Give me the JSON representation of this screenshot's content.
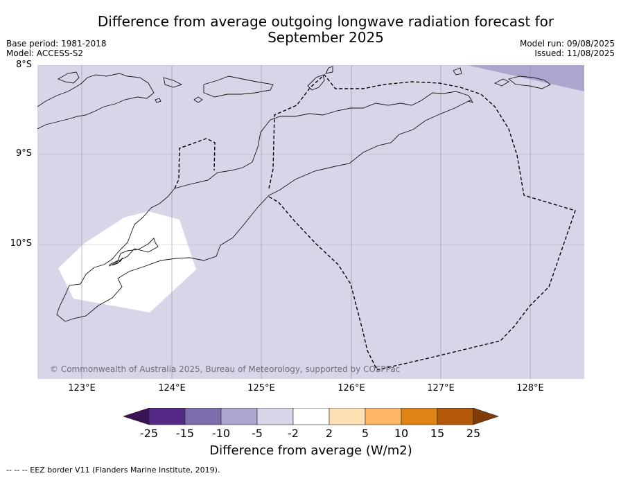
{
  "title": "Difference from average outgoing longwave radiation forecast for September 2025",
  "meta_left": {
    "base_period": "Base period: 1981-2018",
    "model": "Model: ACCESS-S2"
  },
  "meta_right": {
    "model_run": "Model run: 09/08/2025",
    "issued": "Issued: 11/08/2025"
  },
  "map": {
    "lat_labels": [
      "8°S",
      "9°S",
      "10°S"
    ],
    "lon_labels": [
      "123°E",
      "124°E",
      "125°E",
      "126°E",
      "127°E",
      "128°E"
    ],
    "copyright": "© Commonwealth of Australia 2025, Bureau of Meteorology, supported by COSPPac",
    "background_category": "-5 to -2",
    "features": [
      "coastline",
      "eez-border",
      "gridlines"
    ]
  },
  "colorbar": {
    "ticks": [
      "-25",
      "-15",
      "-10",
      "-5",
      "-2",
      "2",
      "5",
      "10",
      "15",
      "25"
    ],
    "colors": [
      "#3a1457",
      "#552a87",
      "#7d6daf",
      "#aca6cf",
      "#d7d6e9",
      "#ffffff",
      "#fee0b5",
      "#fdb663",
      "#e08214",
      "#b35806",
      "#7f3b08"
    ],
    "label": "Difference from average (W/m2)"
  },
  "footnote": "--  --  -- EEZ border V11 (Flanders Marine Institute, 2019)."
}
